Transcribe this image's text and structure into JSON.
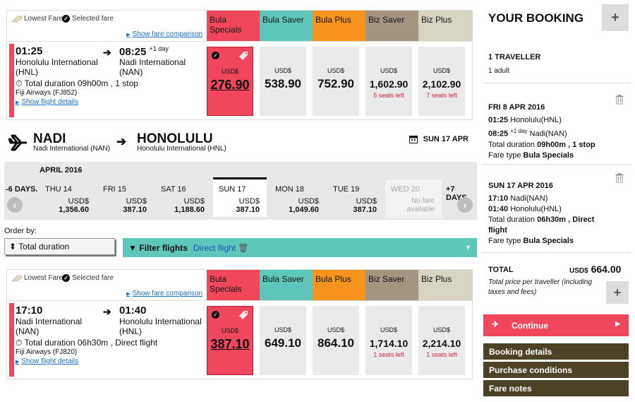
{
  "fare_header": {
    "lowest_label": "Lowest Fares",
    "selected_label": "Selected fare",
    "show_comparison": "Show fare comparison",
    "columns": [
      {
        "name": "Bula Specials",
        "color": "#f0475c"
      },
      {
        "name": "Bula Saver",
        "color": "#5ec7ba"
      },
      {
        "name": "Bula Plus",
        "color": "#f7941d"
      },
      {
        "name": "Biz Saver",
        "color": "#a49583"
      },
      {
        "name": "Biz Plus",
        "color": "#d8d4c4"
      }
    ]
  },
  "outbound": {
    "dep_time": "01:25",
    "arr_time": "08:25",
    "arr_day": "+1 day",
    "dep_airport": [
      "Honolulu International",
      "(HNL)"
    ],
    "arr_airport": [
      "Nadi International",
      "(NAN)"
    ],
    "duration": "Total duration 09h00m , 1 stop",
    "airline": "Fiji Airways (FJ852)",
    "details": "Show flight details",
    "prices": [
      {
        "cur": "USD$",
        "amt": "276.90",
        "seats": ""
      },
      {
        "cur": "USD$",
        "amt": "538.90",
        "seats": ""
      },
      {
        "cur": "USD$",
        "amt": "752.90",
        "seats": ""
      },
      {
        "cur": "USD$",
        "amt": "1,602.90",
        "seats": "5 seats left"
      },
      {
        "cur": "USD$",
        "amt": "2,102.90",
        "seats": "7 seats left"
      }
    ]
  },
  "route": {
    "from_city": "NADI",
    "from_sub": "Nadi International (NAN)",
    "to_city": "HONOLULU",
    "to_sub": "Honolulu International (HNL)",
    "date": "SUN 17 APR"
  },
  "date_strip": {
    "month": "APRIL 2016",
    "prev": "-6 DAYS.",
    "next": "+7 DAYS.",
    "days": [
      {
        "d": "THU 14",
        "cur": "USD$",
        "amt": "1,356.60"
      },
      {
        "d": "FRI 15",
        "cur": "USD$",
        "amt": "387.10"
      },
      {
        "d": "SAT 16",
        "cur": "USD$",
        "amt": "1,188.60"
      },
      {
        "d": "SUN 17",
        "cur": "USD$",
        "amt": "387.10"
      },
      {
        "d": "MON 18",
        "cur": "USD$",
        "amt": "1,049.60"
      },
      {
        "d": "TUE 19",
        "cur": "USD$",
        "amt": "387.10"
      },
      {
        "d": "WED 20",
        "cur": "No fare",
        "amt": "available"
      }
    ]
  },
  "order": {
    "label": "Order by:",
    "value": "Total duration"
  },
  "filter": {
    "label": "Filter flights",
    "chip": "Direct flight"
  },
  "inbound": {
    "dep_time": "17:10",
    "arr_time": "01:40",
    "dep_airport": [
      "Nadi International",
      "(NAN)"
    ],
    "arr_airport": [
      "Honolulu International",
      "(HNL)"
    ],
    "duration": "Total duration 06h30m , Direct flight",
    "airline": "Fiji Airways (FJ820)",
    "details": "Show flight details",
    "prices": [
      {
        "cur": "USD$",
        "amt": "387.10",
        "seats": ""
      },
      {
        "cur": "USD$",
        "amt": "649.10",
        "seats": ""
      },
      {
        "cur": "USD$",
        "amt": "864.10",
        "seats": ""
      },
      {
        "cur": "USD$",
        "amt": "1,714.10",
        "seats": "1 seats left"
      },
      {
        "cur": "USD$",
        "amt": "2,214.10",
        "seats": "1 seats left"
      }
    ]
  },
  "booking": {
    "title": "YOUR BOOKING",
    "plus": "+",
    "travellers": "1 TRAVELLER",
    "traveller_detail": "1 adult",
    "leg1": {
      "date": "FRI 8 APR 2016",
      "dep_time": "01:25",
      "dep_place": "Honolulu(HNL)",
      "arr_time": "08:25",
      "arr_day": "+1 day",
      "arr_place": "Nadi(NAN)",
      "duration_prefix": "Total duration",
      "duration": "09h00m , 1 stop",
      "fare_prefix": "Fare type",
      "fare": "Bula Specials"
    },
    "leg2": {
      "date": "SUN 17 APR 2016",
      "dep_time": "17:10",
      "dep_place": "Nadi(NAN)",
      "arr_time": "01:40",
      "arr_place": "Honolulu(HNL)",
      "duration_prefix": "Total duration",
      "duration": "06h30m , Direct flight",
      "fare_prefix": "Fare type",
      "fare": "Bula Specials"
    },
    "total_label": "TOTAL",
    "total_cur": "USD$",
    "total_amt": "664.00",
    "total_note": "Total price per traveller (including taxes and fees)",
    "continue": "Continue",
    "links": [
      "Booking details",
      "Purchase conditions",
      "Fare notes"
    ]
  }
}
